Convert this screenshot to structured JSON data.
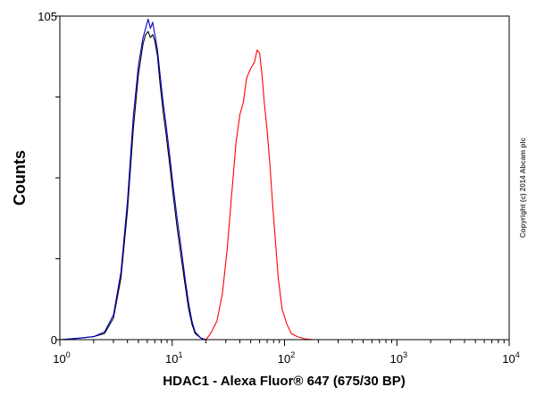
{
  "chart_data": {
    "type": "line",
    "xlabel": "HDAC1 - Alexa Fluor® 647 (675/30 BP)",
    "ylabel": "Counts",
    "x_scale": "log",
    "xlim": [
      1,
      10000
    ],
    "ylim": [
      0,
      105
    ],
    "x_ticks": [
      {
        "base": "10",
        "exp": "0"
      },
      {
        "base": "10",
        "exp": "1"
      },
      {
        "base": "10",
        "exp": "2"
      },
      {
        "base": "10",
        "exp": "3"
      },
      {
        "base": "10",
        "exp": "4"
      }
    ],
    "y_ticks": [
      "0",
      "105"
    ],
    "grid": false,
    "legend": "none",
    "annotation": "Copyright (c) 2014 Abcam plc",
    "series": [
      {
        "color": "#000000",
        "x": [
          1,
          1.5,
          2,
          2.5,
          3,
          3.5,
          4,
          4.5,
          5,
          5.5,
          5.8,
          6.1,
          6.4,
          6.7,
          7,
          7.4,
          7.8,
          8.3,
          8.8,
          9.5,
          10.2,
          11,
          12,
          13,
          14,
          15,
          16,
          18,
          20,
          25,
          35,
          60,
          100,
          1000,
          10000
        ],
        "y": [
          0,
          0.5,
          1,
          2,
          7,
          20,
          42,
          68,
          86,
          96,
          99,
          100,
          98,
          99,
          97,
          92,
          83,
          74,
          67,
          57,
          47,
          37,
          27,
          18,
          10,
          5,
          2,
          0.5,
          0,
          0,
          0,
          0,
          0,
          0,
          0
        ]
      },
      {
        "color": "#0000cc",
        "x": [
          1,
          1.5,
          2,
          2.5,
          3,
          3.5,
          4,
          4.5,
          5,
          5.5,
          5.8,
          6.1,
          6.4,
          6.7,
          7,
          7.4,
          7.8,
          8.3,
          8.8,
          9.5,
          10.2,
          11,
          12,
          13,
          14,
          15,
          16,
          18,
          20,
          25,
          35,
          60,
          100,
          1000,
          10000
        ],
        "y": [
          0,
          0.5,
          1,
          2.5,
          8,
          22,
          45,
          72,
          89,
          98,
          101,
          104,
          101,
          103,
          99,
          94,
          86,
          77,
          70,
          60,
          50,
          40,
          30,
          20,
          12,
          6,
          2.5,
          0.5,
          0,
          0,
          0,
          0,
          0,
          0,
          0
        ]
      },
      {
        "color": "#ff0000",
        "x": [
          1,
          10,
          20,
          22,
          25,
          28,
          31,
          34,
          37,
          40,
          43,
          46,
          50,
          54,
          57,
          60,
          63,
          66,
          70,
          74,
          78,
          83,
          88,
          95,
          105,
          115,
          130,
          150,
          180,
          1000,
          10000
        ],
        "y": [
          0,
          0,
          0,
          2,
          6,
          15,
          30,
          48,
          64,
          73,
          77,
          85,
          88,
          90,
          94,
          93,
          86,
          77,
          68,
          57,
          45,
          32,
          20,
          10,
          5,
          2,
          1,
          0.3,
          0,
          0,
          0
        ]
      }
    ]
  }
}
